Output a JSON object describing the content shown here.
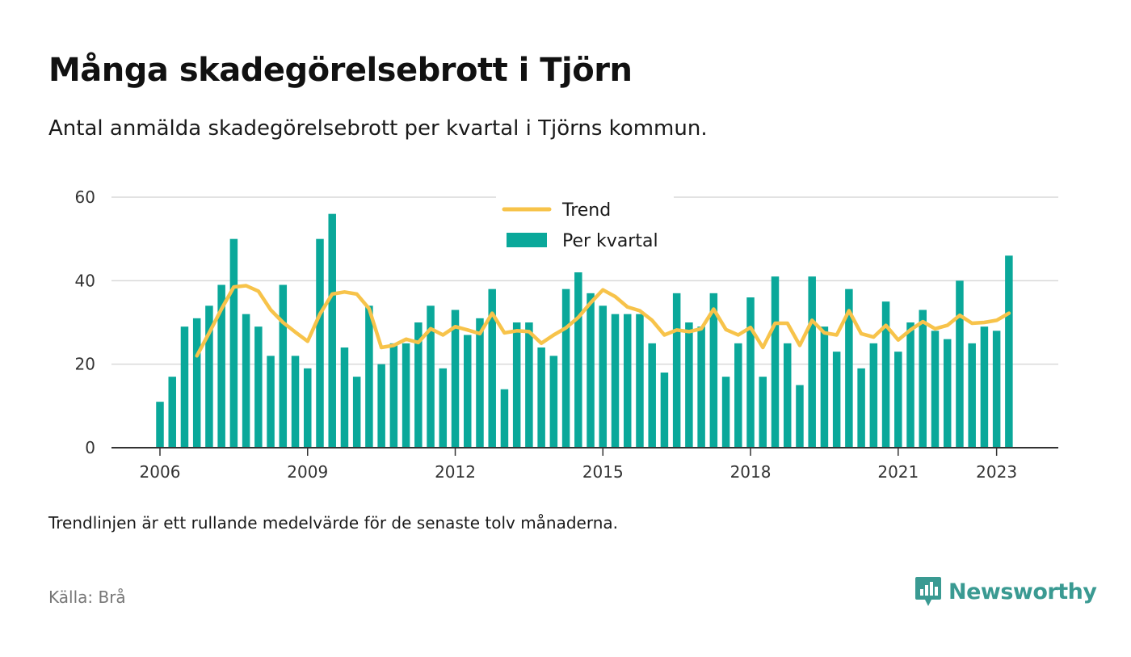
{
  "header": {
    "title": "Många skadegörelsebrott i Tjörn",
    "subtitle": "Antal anmälda skadegörelsebrott per kvartal i Tjörns kommun."
  },
  "footer": {
    "note": "Trendlinjen är ett rullande medelvärde för de senaste tolv månaderna.",
    "source": "Källa: Brå",
    "brand": "Newsworthy"
  },
  "colors": {
    "bars": "#0aa89a",
    "trend": "#f7c34a",
    "grid": "#d9d9d9",
    "axis": "#333333",
    "brand": "#3a9a92"
  },
  "chart_data": {
    "type": "bar",
    "x_start": "2006 Q1",
    "y_ticks": [
      0,
      20,
      40,
      60
    ],
    "ylim": [
      0,
      60
    ],
    "x_ticks": [
      "2006",
      "2009",
      "2012",
      "2015",
      "2018",
      "2021",
      "2023"
    ],
    "grid": true,
    "legend_position": "top-center",
    "series": [
      {
        "name": "Per kvartal",
        "type": "bar",
        "values": [
          11,
          17,
          29,
          31,
          34,
          39,
          50,
          32,
          29,
          22,
          39,
          22,
          19,
          50,
          56,
          24,
          17,
          34,
          20,
          25,
          25,
          30,
          34,
          19,
          33,
          27,
          31,
          38,
          14,
          30,
          30,
          24,
          22,
          38,
          42,
          37,
          34,
          32,
          32,
          32,
          25,
          18,
          37,
          30,
          29,
          37,
          17,
          25,
          36,
          17,
          41,
          25,
          15,
          41,
          29,
          23,
          38,
          19,
          25,
          35,
          23,
          30,
          33,
          28,
          26,
          40,
          25,
          29,
          28,
          46
        ]
      },
      {
        "name": "Trend",
        "type": "line",
        "values": [
          null,
          null,
          null,
          22,
          27.5,
          33.2,
          38.5,
          38.8,
          37.5,
          33,
          30,
          27.7,
          25.5,
          32,
          36.8,
          37.3,
          36.8,
          33.3,
          24,
          24.5,
          26,
          25.2,
          28.5,
          27,
          29,
          28.2,
          27.3,
          32.2,
          27.5,
          28,
          27.8,
          25,
          27,
          28.7,
          31.2,
          34.7,
          37.8,
          36.2,
          33.7,
          32.8,
          30.5,
          27,
          28.2,
          27.8,
          28.5,
          33.2,
          28.3,
          27,
          28.8,
          24,
          29.8,
          29.8,
          24.5,
          30.5,
          27.5,
          27,
          32.8,
          27.3,
          26.5,
          29.3,
          25.8,
          28.2,
          30.2,
          28.5,
          29.3,
          31.7,
          29.8,
          30,
          30.5,
          32.2
        ]
      }
    ]
  }
}
